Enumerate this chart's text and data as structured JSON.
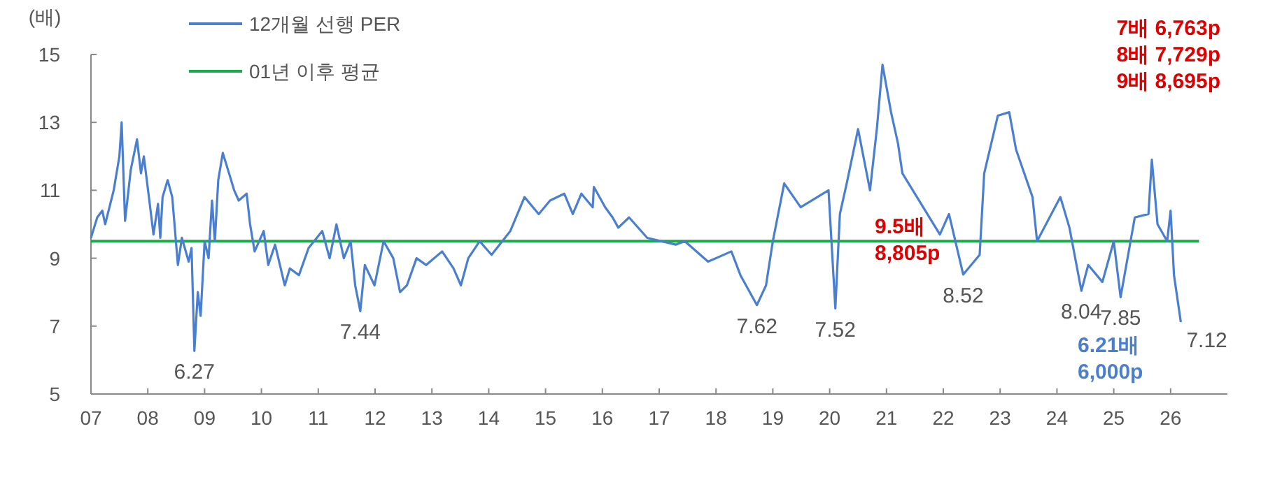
{
  "chart_data": {
    "type": "line",
    "ylabel": "(배)",
    "legend": "top left",
    "grid": false,
    "marker": "none",
    "line_style": "solid",
    "xlim": [
      2007,
      2027
    ],
    "ylim": [
      5,
      15
    ],
    "yticks": [
      5,
      7,
      9,
      11,
      13,
      15
    ],
    "xticks": [
      {
        "value": 2007,
        "label": "07"
      },
      {
        "value": 2008,
        "label": "08"
      },
      {
        "value": 2009,
        "label": "09"
      },
      {
        "value": 2010,
        "label": "10"
      },
      {
        "value": 2011,
        "label": "11"
      },
      {
        "value": 2012,
        "label": "12"
      },
      {
        "value": 2013,
        "label": "13"
      },
      {
        "value": 2014,
        "label": "14"
      },
      {
        "value": 2015,
        "label": "15"
      },
      {
        "value": 2016,
        "label": "16"
      },
      {
        "value": 2017,
        "label": "17"
      },
      {
        "value": 2018,
        "label": "18"
      },
      {
        "value": 2019,
        "label": "19"
      },
      {
        "value": 2020,
        "label": "20"
      },
      {
        "value": 2021,
        "label": "21"
      },
      {
        "value": 2022,
        "label": "22"
      },
      {
        "value": 2023,
        "label": "23"
      },
      {
        "value": 2024,
        "label": "24"
      },
      {
        "value": 2025,
        "label": "25"
      },
      {
        "value": 2026,
        "label": "26"
      }
    ],
    "series": [
      {
        "name": "12개월 선행 PER",
        "color": "#4a7fcf",
        "x": [
          2007.0,
          2007.11,
          2007.2,
          2007.25,
          2007.4,
          2007.5,
          2007.54,
          2007.6,
          2007.7,
          2007.81,
          2007.88,
          2007.93,
          2008.02,
          2008.1,
          2008.18,
          2008.22,
          2008.26,
          2008.35,
          2008.43,
          2008.53,
          2008.6,
          2008.72,
          2008.77,
          2008.8,
          2008.82,
          2008.88,
          2008.93,
          2009.0,
          2009.07,
          2009.13,
          2009.18,
          2009.24,
          2009.32,
          2009.43,
          2009.52,
          2009.6,
          2009.74,
          2009.8,
          2009.88,
          2010.04,
          2010.12,
          2010.24,
          2010.41,
          2010.5,
          2010.66,
          2010.83,
          2011.07,
          2011.2,
          2011.32,
          2011.45,
          2011.57,
          2011.65,
          2011.74,
          2011.82,
          2011.99,
          2012.15,
          2012.32,
          2012.44,
          2012.56,
          2012.73,
          2012.9,
          2013.18,
          2013.38,
          2013.51,
          2013.64,
          2013.84,
          2014.05,
          2014.38,
          2014.63,
          2014.88,
          2015.08,
          2015.33,
          2015.48,
          2015.63,
          2015.83,
          2015.85,
          2016.05,
          2016.18,
          2016.28,
          2016.47,
          2016.79,
          2017.29,
          2017.45,
          2017.86,
          2018.27,
          2018.43,
          2018.72,
          2018.88,
          2019.0,
          2019.2,
          2019.49,
          2019.98,
          2020.1,
          2020.18,
          2020.3,
          2020.5,
          2020.71,
          2020.83,
          2020.93,
          2021.08,
          2021.2,
          2021.28,
          2021.61,
          2021.94,
          2022.1,
          2022.35,
          2022.64,
          2022.72,
          2022.96,
          2023.16,
          2023.28,
          2023.57,
          2023.65,
          2024.06,
          2024.22,
          2024.43,
          2024.55,
          2024.8,
          2025.0,
          2025.12,
          2025.37,
          2025.61,
          2025.67,
          2025.77,
          2025.94,
          2026.0,
          2026.06,
          2026.18
        ],
        "values": [
          9.6,
          10.2,
          10.4,
          10.0,
          11.0,
          12.0,
          13.0,
          10.1,
          11.6,
          12.5,
          11.5,
          12.0,
          10.8,
          9.7,
          10.6,
          9.6,
          10.8,
          11.3,
          10.8,
          8.8,
          9.6,
          8.9,
          9.3,
          7.5,
          6.27,
          8.0,
          7.3,
          9.5,
          9.0,
          10.7,
          9.5,
          11.3,
          12.1,
          11.5,
          11.0,
          10.7,
          10.9,
          10.0,
          9.2,
          9.8,
          8.8,
          9.4,
          8.2,
          8.7,
          8.5,
          9.3,
          9.8,
          9.0,
          10.0,
          9.0,
          9.5,
          8.2,
          7.44,
          8.8,
          8.2,
          9.5,
          9.0,
          8.0,
          8.2,
          9.0,
          8.8,
          9.2,
          8.7,
          8.2,
          9.0,
          9.5,
          9.1,
          9.8,
          10.8,
          10.3,
          10.7,
          10.9,
          10.3,
          10.9,
          10.5,
          11.1,
          10.5,
          10.2,
          9.9,
          10.2,
          9.6,
          9.4,
          9.5,
          8.9,
          9.2,
          8.5,
          7.62,
          8.2,
          9.5,
          11.2,
          10.5,
          11.0,
          7.52,
          10.3,
          11.2,
          12.8,
          11.0,
          12.8,
          14.7,
          13.3,
          12.4,
          11.5,
          10.6,
          9.7,
          10.3,
          8.52,
          9.1,
          11.5,
          13.2,
          13.3,
          12.2,
          10.8,
          9.5,
          10.8,
          9.9,
          8.04,
          8.8,
          8.3,
          9.5,
          7.85,
          10.2,
          10.3,
          11.9,
          10.0,
          9.5,
          10.4,
          8.5,
          7.12
        ]
      },
      {
        "name": "01년 이후 평균",
        "color": "#1aaa4a",
        "x": [
          2007.0,
          2026.5
        ],
        "values": [
          9.5,
          9.5
        ]
      }
    ],
    "annotations": [
      {
        "text": "6.27",
        "x": 2008.82,
        "y": 6.27
      },
      {
        "text": "7.44",
        "x": 2011.74,
        "y": 7.44
      },
      {
        "text": "7.62",
        "x": 2018.72,
        "y": 7.62
      },
      {
        "text": "7.52",
        "x": 2020.1,
        "y": 7.52
      },
      {
        "text": "8.52",
        "x": 2022.35,
        "y": 8.52
      },
      {
        "text": "8.04",
        "x": 2024.43,
        "y": 8.04
      },
      {
        "text": "7.85",
        "x": 2025.12,
        "y": 7.85
      },
      {
        "text": "7.12",
        "x": 2026.18,
        "y": 7.12
      },
      "9.5배\n8,805p",
      "7배 6,763p\n8배 7,729p\n9배 8,695p",
      "6.21배\n6,000p"
    ]
  }
}
